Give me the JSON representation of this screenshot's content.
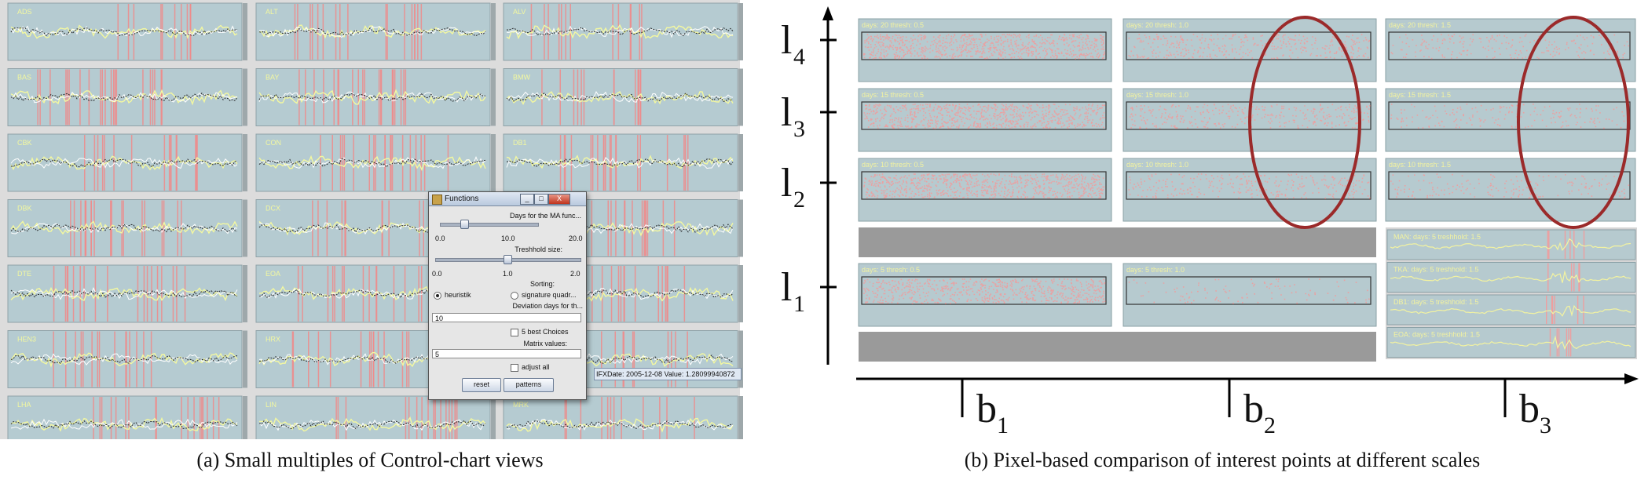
{
  "left_panel": {
    "caption": "(a)  Small multiples of Control-chart views",
    "tiles": [
      [
        "ADS",
        "ALT",
        "ALV"
      ],
      [
        "BAS",
        "BAY",
        "BMW"
      ],
      [
        "CBK",
        "CON",
        "DB1"
      ],
      [
        "DBK",
        "DCX",
        ""
      ],
      [
        "DTE",
        "EOA",
        ""
      ],
      [
        "HEN3",
        "HRX",
        ""
      ],
      [
        "LHA",
        "LIN",
        "MRK"
      ]
    ],
    "colors": {
      "tile_bg": "#b5cbd1",
      "frame_bg": "#dcdcdc",
      "interest": "#f08a8a",
      "series_light": "#f3f8a0",
      "series_dark": "#1c1c1c",
      "series_white": "#ffffff"
    }
  },
  "dialog": {
    "title": "Functions",
    "window_buttons": {
      "minimize": "_",
      "maximize": "□",
      "close": "X"
    },
    "ma_label": "Days for the MA func...",
    "ma_ticks": [
      "0.0",
      "10.0",
      "20.0"
    ],
    "ma_value": 5,
    "threshold_label": "Treshhold size:",
    "threshold_ticks": [
      "0.0",
      "1.0",
      "2.0"
    ],
    "threshold_value": 1.0,
    "sorting_label": "Sorting:",
    "sort_options": [
      "heuristik",
      "signature quadr..."
    ],
    "sort_selected": "heuristik",
    "deviation_label": "Deviation days for th...",
    "deviation_value": "10",
    "best_choices_label": "5 best Choices",
    "best_choices_checked": false,
    "matrix_label": "Matrix values:",
    "matrix_value": "5",
    "adjust_label": "adjust all",
    "adjust_checked": false,
    "reset_label": "reset",
    "patterns_label": "patterns"
  },
  "status_tooltip": "IFXDate: 2005-12-08 Value: 1.28099940872",
  "right_panel": {
    "caption": "(b)  Pixel-based comparison of interest points at different scales",
    "y_axis_labels": [
      {
        "base": "l",
        "sub": "4"
      },
      {
        "base": "l",
        "sub": "3"
      },
      {
        "base": "l",
        "sub": "2"
      },
      {
        "base": "l",
        "sub": "1"
      }
    ],
    "x_axis_labels": [
      {
        "base": "b",
        "sub": "1"
      },
      {
        "base": "b",
        "sub": "2"
      },
      {
        "base": "b",
        "sub": "3"
      }
    ],
    "rows": [
      {
        "days": 20,
        "cells": [
          "days: 20 thresh: 0.5",
          "days: 20 thresh: 1.0",
          "days: 20 thresh: 1.5"
        ],
        "densities": [
          0.95,
          0.45,
          0.25
        ]
      },
      {
        "days": 15,
        "cells": [
          "days: 15 thresh: 0.5",
          "days: 15 thresh: 1.0",
          "days: 15 thresh: 1.5"
        ],
        "densities": [
          0.9,
          0.4,
          0.22
        ]
      },
      {
        "days": 10,
        "cells": [
          "days: 10 thresh: 0.5",
          "days: 10 thresh: 1.0",
          "days: 10 thresh: 1.5"
        ],
        "densities": [
          0.9,
          0.35,
          0.2
        ]
      },
      {
        "days": 5,
        "cells": [
          "days: 5 thresh: 0.5",
          "days: 5 thresh: 1.0"
        ],
        "densities": [
          0.75,
          0.12
        ]
      }
    ],
    "mini_charts": [
      "MAN: days: 5 treshhold: 1.5",
      "TKA: days: 5 treshhold: 1.5",
      "DB1: days: 5 treshhold: 1.5",
      "EOA: days: 5 treshhold: 1.5"
    ],
    "colors": {
      "cell_bg": "#b6cacf",
      "gray_bar": "#9a9a9a",
      "pixel": "#f39a9a",
      "ellipse": "#9b2a2a",
      "axis": "#000000",
      "label_text": "#f3f3a0"
    }
  }
}
